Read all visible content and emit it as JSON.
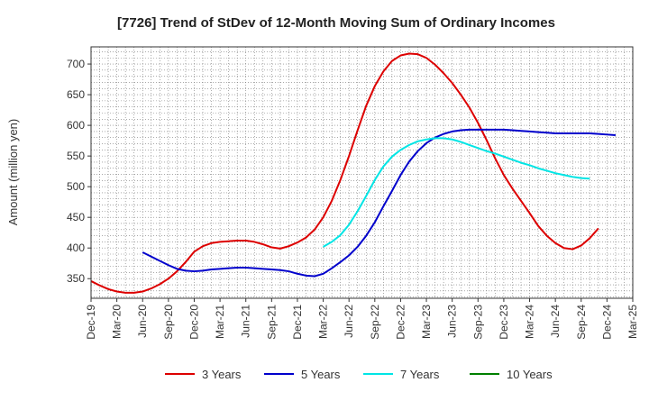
{
  "chart_data": {
    "type": "line",
    "title": "[7726]  Trend of StDev of 12-Month Moving Sum of Ordinary Incomes",
    "xlabel": "",
    "ylabel": "Amount (million yen)",
    "x_ticks": [
      "Dec-19",
      "Mar-20",
      "Jun-20",
      "Sep-20",
      "Dec-20",
      "Mar-21",
      "Jun-21",
      "Sep-21",
      "Dec-21",
      "Mar-22",
      "Jun-22",
      "Sep-22",
      "Dec-22",
      "Mar-23",
      "Jun-23",
      "Sep-23",
      "Dec-23",
      "Mar-24",
      "Jun-24",
      "Sep-24",
      "Dec-24",
      "Mar-25"
    ],
    "y_ticks": [
      350,
      400,
      450,
      500,
      550,
      600,
      650,
      700
    ],
    "ylim": [
      318,
      728
    ],
    "xlim": [
      0,
      63
    ],
    "grid": true,
    "legend_position": "bottom",
    "series": [
      {
        "name": "3 Years",
        "color": "#dd0000",
        "start_index": 0,
        "values": [
          346,
          339,
          333,
          329,
          327,
          327,
          329,
          334,
          341,
          350,
          362,
          377,
          394,
          403,
          408,
          410,
          411,
          412,
          412,
          410,
          406,
          401,
          399,
          403,
          409,
          417,
          430,
          450,
          477,
          511,
          550,
          592,
          632,
          664,
          688,
          705,
          714,
          717,
          716,
          710,
          699,
          685,
          669,
          650,
          629,
          604,
          576,
          546,
          519,
          497,
          477,
          457,
          436,
          420,
          408,
          400,
          398,
          404,
          416,
          432
        ]
      },
      {
        "name": "5 Years",
        "color": "#0000cc",
        "start_index": 6,
        "values": [
          393,
          386,
          379,
          372,
          366,
          363,
          362,
          363,
          365,
          366,
          367,
          368,
          368,
          367,
          366,
          365,
          364,
          362,
          358,
          355,
          354,
          358,
          367,
          377,
          388,
          402,
          420,
          442,
          468,
          493,
          519,
          541,
          558,
          571,
          580,
          586,
          590,
          592,
          593,
          593,
          593,
          593,
          593,
          592,
          591,
          590,
          589,
          588,
          587,
          587,
          587,
          587,
          587,
          586,
          585,
          584
        ]
      },
      {
        "name": "7 Years",
        "color": "#00e5e5",
        "start_index": 27,
        "values": [
          402,
          410,
          421,
          438,
          460,
          485,
          511,
          533,
          549,
          560,
          568,
          574,
          577,
          579,
          579,
          577,
          573,
          568,
          563,
          558,
          554,
          549,
          544,
          539,
          535,
          530,
          526,
          522,
          519,
          516,
          514,
          513
        ]
      },
      {
        "name": "10 Years",
        "color": "#008000",
        "start_index": 0,
        "values": []
      }
    ]
  }
}
